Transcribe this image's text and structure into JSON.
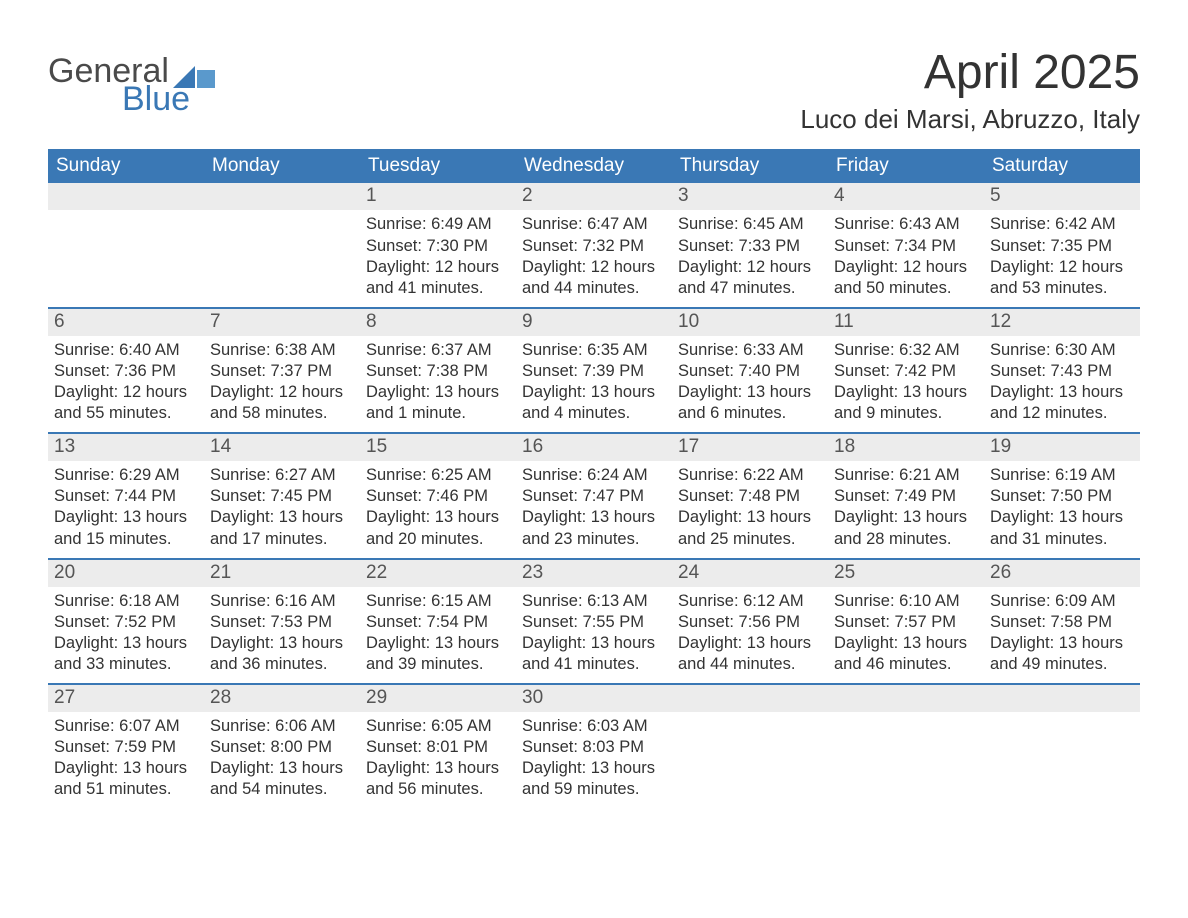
{
  "brand": {
    "word1": "General",
    "word2": "Blue",
    "logo_colors": [
      "#3a78b5",
      "#5a99cc"
    ]
  },
  "title": "April 2025",
  "location": "Luco dei Marsi, Abruzzo, Italy",
  "colors": {
    "header_bg": "#3a78b5",
    "header_text": "#ffffff",
    "week_divider": "#3a78b5",
    "daynum_bg": "#ececec",
    "daynum_text": "#555555",
    "body_text": "#333333",
    "page_bg": "#ffffff"
  },
  "typography": {
    "title_fontsize": 48,
    "location_fontsize": 26,
    "header_fontsize": 19,
    "daynum_fontsize": 19,
    "body_fontsize": 16.5,
    "font_family": "Segoe UI / Arial"
  },
  "day_headers": [
    "Sunday",
    "Monday",
    "Tuesday",
    "Wednesday",
    "Thursday",
    "Friday",
    "Saturday"
  ],
  "weeks": [
    [
      {
        "num": "",
        "sunrise": "",
        "sunset": "",
        "daylight": ""
      },
      {
        "num": "",
        "sunrise": "",
        "sunset": "",
        "daylight": ""
      },
      {
        "num": "1",
        "sunrise": "Sunrise: 6:49 AM",
        "sunset": "Sunset: 7:30 PM",
        "daylight": "Daylight: 12 hours and 41 minutes."
      },
      {
        "num": "2",
        "sunrise": "Sunrise: 6:47 AM",
        "sunset": "Sunset: 7:32 PM",
        "daylight": "Daylight: 12 hours and 44 minutes."
      },
      {
        "num": "3",
        "sunrise": "Sunrise: 6:45 AM",
        "sunset": "Sunset: 7:33 PM",
        "daylight": "Daylight: 12 hours and 47 minutes."
      },
      {
        "num": "4",
        "sunrise": "Sunrise: 6:43 AM",
        "sunset": "Sunset: 7:34 PM",
        "daylight": "Daylight: 12 hours and 50 minutes."
      },
      {
        "num": "5",
        "sunrise": "Sunrise: 6:42 AM",
        "sunset": "Sunset: 7:35 PM",
        "daylight": "Daylight: 12 hours and 53 minutes."
      }
    ],
    [
      {
        "num": "6",
        "sunrise": "Sunrise: 6:40 AM",
        "sunset": "Sunset: 7:36 PM",
        "daylight": "Daylight: 12 hours and 55 minutes."
      },
      {
        "num": "7",
        "sunrise": "Sunrise: 6:38 AM",
        "sunset": "Sunset: 7:37 PM",
        "daylight": "Daylight: 12 hours and 58 minutes."
      },
      {
        "num": "8",
        "sunrise": "Sunrise: 6:37 AM",
        "sunset": "Sunset: 7:38 PM",
        "daylight": "Daylight: 13 hours and 1 minute."
      },
      {
        "num": "9",
        "sunrise": "Sunrise: 6:35 AM",
        "sunset": "Sunset: 7:39 PM",
        "daylight": "Daylight: 13 hours and 4 minutes."
      },
      {
        "num": "10",
        "sunrise": "Sunrise: 6:33 AM",
        "sunset": "Sunset: 7:40 PM",
        "daylight": "Daylight: 13 hours and 6 minutes."
      },
      {
        "num": "11",
        "sunrise": "Sunrise: 6:32 AM",
        "sunset": "Sunset: 7:42 PM",
        "daylight": "Daylight: 13 hours and 9 minutes."
      },
      {
        "num": "12",
        "sunrise": "Sunrise: 6:30 AM",
        "sunset": "Sunset: 7:43 PM",
        "daylight": "Daylight: 13 hours and 12 minutes."
      }
    ],
    [
      {
        "num": "13",
        "sunrise": "Sunrise: 6:29 AM",
        "sunset": "Sunset: 7:44 PM",
        "daylight": "Daylight: 13 hours and 15 minutes."
      },
      {
        "num": "14",
        "sunrise": "Sunrise: 6:27 AM",
        "sunset": "Sunset: 7:45 PM",
        "daylight": "Daylight: 13 hours and 17 minutes."
      },
      {
        "num": "15",
        "sunrise": "Sunrise: 6:25 AM",
        "sunset": "Sunset: 7:46 PM",
        "daylight": "Daylight: 13 hours and 20 minutes."
      },
      {
        "num": "16",
        "sunrise": "Sunrise: 6:24 AM",
        "sunset": "Sunset: 7:47 PM",
        "daylight": "Daylight: 13 hours and 23 minutes."
      },
      {
        "num": "17",
        "sunrise": "Sunrise: 6:22 AM",
        "sunset": "Sunset: 7:48 PM",
        "daylight": "Daylight: 13 hours and 25 minutes."
      },
      {
        "num": "18",
        "sunrise": "Sunrise: 6:21 AM",
        "sunset": "Sunset: 7:49 PM",
        "daylight": "Daylight: 13 hours and 28 minutes."
      },
      {
        "num": "19",
        "sunrise": "Sunrise: 6:19 AM",
        "sunset": "Sunset: 7:50 PM",
        "daylight": "Daylight: 13 hours and 31 minutes."
      }
    ],
    [
      {
        "num": "20",
        "sunrise": "Sunrise: 6:18 AM",
        "sunset": "Sunset: 7:52 PM",
        "daylight": "Daylight: 13 hours and 33 minutes."
      },
      {
        "num": "21",
        "sunrise": "Sunrise: 6:16 AM",
        "sunset": "Sunset: 7:53 PM",
        "daylight": "Daylight: 13 hours and 36 minutes."
      },
      {
        "num": "22",
        "sunrise": "Sunrise: 6:15 AM",
        "sunset": "Sunset: 7:54 PM",
        "daylight": "Daylight: 13 hours and 39 minutes."
      },
      {
        "num": "23",
        "sunrise": "Sunrise: 6:13 AM",
        "sunset": "Sunset: 7:55 PM",
        "daylight": "Daylight: 13 hours and 41 minutes."
      },
      {
        "num": "24",
        "sunrise": "Sunrise: 6:12 AM",
        "sunset": "Sunset: 7:56 PM",
        "daylight": "Daylight: 13 hours and 44 minutes."
      },
      {
        "num": "25",
        "sunrise": "Sunrise: 6:10 AM",
        "sunset": "Sunset: 7:57 PM",
        "daylight": "Daylight: 13 hours and 46 minutes."
      },
      {
        "num": "26",
        "sunrise": "Sunrise: 6:09 AM",
        "sunset": "Sunset: 7:58 PM",
        "daylight": "Daylight: 13 hours and 49 minutes."
      }
    ],
    [
      {
        "num": "27",
        "sunrise": "Sunrise: 6:07 AM",
        "sunset": "Sunset: 7:59 PM",
        "daylight": "Daylight: 13 hours and 51 minutes."
      },
      {
        "num": "28",
        "sunrise": "Sunrise: 6:06 AM",
        "sunset": "Sunset: 8:00 PM",
        "daylight": "Daylight: 13 hours and 54 minutes."
      },
      {
        "num": "29",
        "sunrise": "Sunrise: 6:05 AM",
        "sunset": "Sunset: 8:01 PM",
        "daylight": "Daylight: 13 hours and 56 minutes."
      },
      {
        "num": "30",
        "sunrise": "Sunrise: 6:03 AM",
        "sunset": "Sunset: 8:03 PM",
        "daylight": "Daylight: 13 hours and 59 minutes."
      },
      {
        "num": "",
        "sunrise": "",
        "sunset": "",
        "daylight": ""
      },
      {
        "num": "",
        "sunrise": "",
        "sunset": "",
        "daylight": ""
      },
      {
        "num": "",
        "sunrise": "",
        "sunset": "",
        "daylight": ""
      }
    ]
  ]
}
